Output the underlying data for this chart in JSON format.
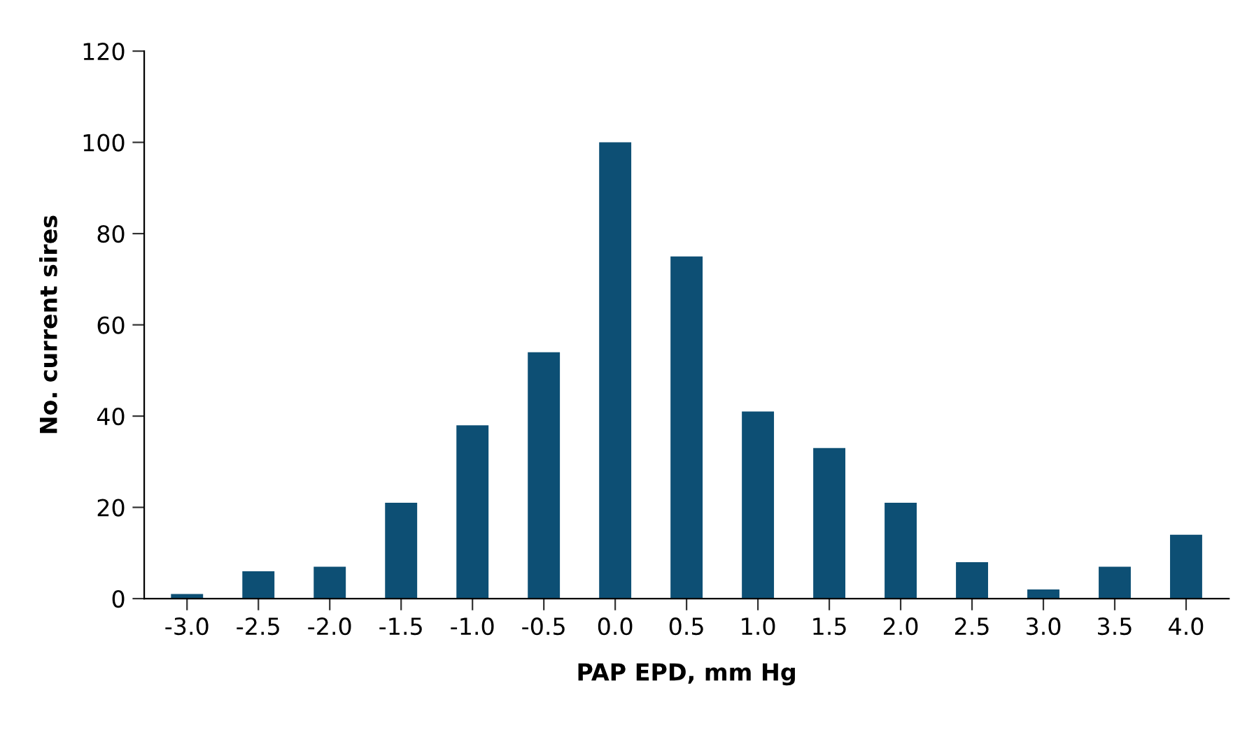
{
  "chart_data": {
    "type": "bar",
    "xlabel": "PAP EPD, mm Hg",
    "ylabel": "No. current sires",
    "categories": [
      "-3.0",
      "-2.5",
      "-2.0",
      "-1.5",
      "-1.0",
      "-0.5",
      "0.0",
      "0.5",
      "1.0",
      "1.5",
      "2.0",
      "2.5",
      "3.0",
      "3.5",
      "4.0"
    ],
    "values": [
      1,
      6,
      7,
      21,
      38,
      54,
      100,
      75,
      41,
      33,
      21,
      8,
      2,
      7,
      14
    ],
    "color": "#0d4f74",
    "ylim": [
      0,
      120
    ],
    "yticks": [
      0,
      20,
      40,
      60,
      80,
      100,
      120
    ],
    "grid": false,
    "legend": false
  }
}
